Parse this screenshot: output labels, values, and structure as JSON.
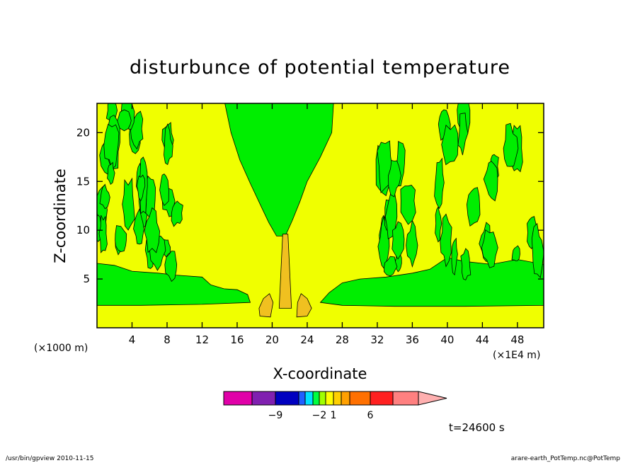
{
  "chart_data": {
    "type": "contour",
    "title": "disturbunce of potential temperature",
    "xlabel": "X-coordinate",
    "ylabel": "Z-coordinate",
    "x_unit_note": "(×1000 m)",
    "x_scale_note": "(×1E4 m)",
    "xlim": [
      0,
      51
    ],
    "ylim": [
      0,
      23
    ],
    "x_ticks": [
      4,
      8,
      12,
      16,
      20,
      24,
      28,
      32,
      36,
      40,
      44,
      48
    ],
    "y_ticks": [
      5,
      10,
      15,
      20
    ],
    "colorbar": {
      "colors": [
        "#e000a8",
        "#8020b0",
        "#0000c0",
        "#2060ff",
        "#00e0ff",
        "#00ff40",
        "#a0ff00",
        "#ffff00",
        "#ffd000",
        "#ffa000",
        "#ff7000",
        "#ff2020",
        "#ff8080",
        "#ffb0b0"
      ],
      "labels": [
        {
          "text": "−9",
          "at": 2
        },
        {
          "text": "−2",
          "at": 6
        },
        {
          "text": "1",
          "at": 8
        },
        {
          "text": "6",
          "at": 11
        }
      ]
    },
    "regions": {
      "background_color": "#f0ff00",
      "positive_anomaly_color": "#00ee00",
      "warm_color": "#f0c020"
    },
    "time_label": "t=24600 s"
  },
  "footer": {
    "left": "/usr/bin/gpview   2010-11-15",
    "right": "arare-earth_PotTemp.nc@PotTemp"
  }
}
